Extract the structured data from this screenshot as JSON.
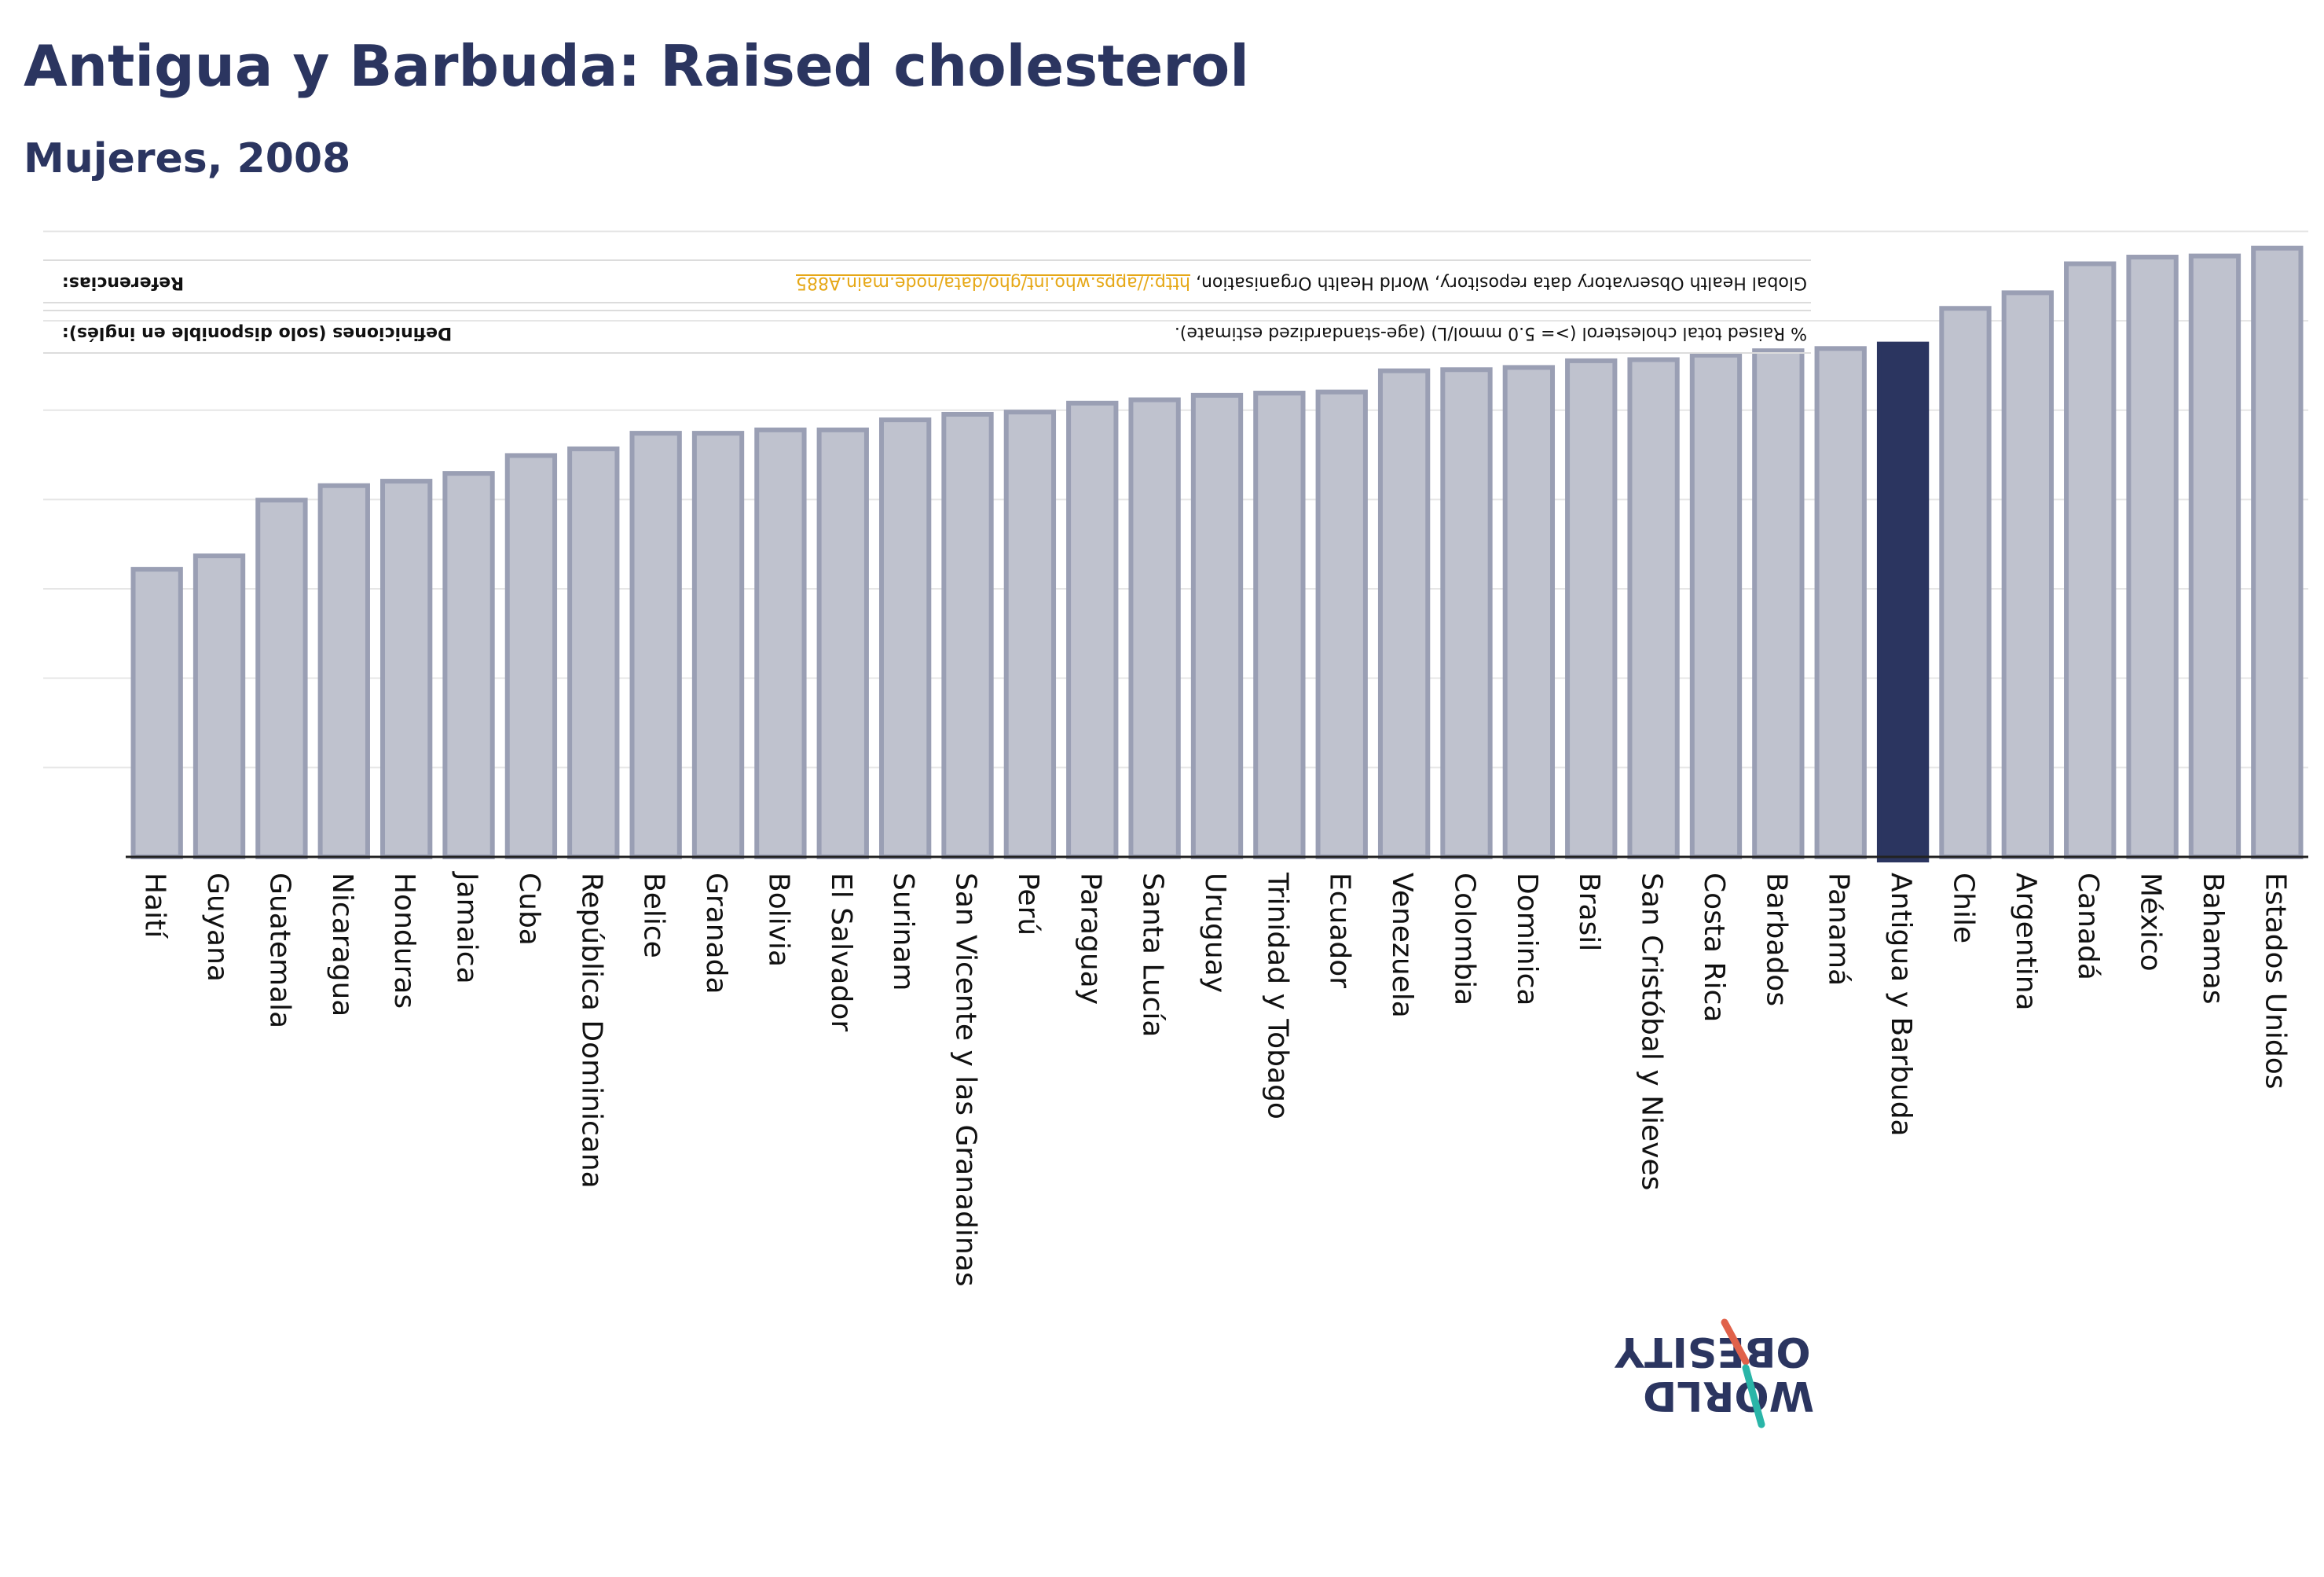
{
  "title": "Antigua y Barbuda: Raised cholesterol",
  "subtitle": "Mujeres, 2008",
  "colors": {
    "title": "#2b3560",
    "bar": "#bfc2ce",
    "bar_stroke": "#9a9fb4",
    "highlight": "#2b3560",
    "link": "#e6a817"
  },
  "footnotes": {
    "definitions_label": "Definiciones (solo disponible en inglés):",
    "definitions_text": "% Raised total cholesterol (>= 5.0 mmol/L) (age-standardized estimate).",
    "references_label": "Referencias:",
    "references_text": "Global Health Observatory data repository, World Health Organisation, ",
    "references_link": "http://apps.who.int/gho/data/node.main.A885"
  },
  "logo": {
    "line1": "OBESITY",
    "line2": "WORLD"
  },
  "chart_data": {
    "type": "bar",
    "highlight": "Antigua y Barbuda",
    "ylim": [
      0,
      55
    ],
    "categories": [
      "Haití",
      "Guyana",
      "Guatemala",
      "Nicaragua",
      "Honduras",
      "Jamaica",
      "Cuba",
      "República Dominicana",
      "Belice",
      "Granada",
      "Bolivia",
      "El Salvador",
      "Surinam",
      "San Vicente y las Granadinas",
      "Perú",
      "Paraguay",
      "Santa Lucía",
      "Uruguay",
      "Trinidad y Tobago",
      "Ecuador",
      "Venezuela",
      "Colombia",
      "Dominica",
      "Brasil",
      "San Cristóbal y Nieves",
      "Costa Rica",
      "Barbados",
      "Panamá",
      "Antigua y Barbuda",
      "Chile",
      "Argentina",
      "Canadá",
      "México",
      "Bahamas",
      "Estados Unidos"
    ],
    "values": [
      25.8,
      27.0,
      32.0,
      33.3,
      33.7,
      34.4,
      36.0,
      36.6,
      38.0,
      38.0,
      38.3,
      38.3,
      39.2,
      39.7,
      39.9,
      40.7,
      41.0,
      41.4,
      41.6,
      41.7,
      43.6,
      43.7,
      43.9,
      44.5,
      44.6,
      45.0,
      45.4,
      45.6,
      46.0,
      49.2,
      50.6,
      53.2,
      53.8,
      53.9,
      54.6
    ]
  }
}
